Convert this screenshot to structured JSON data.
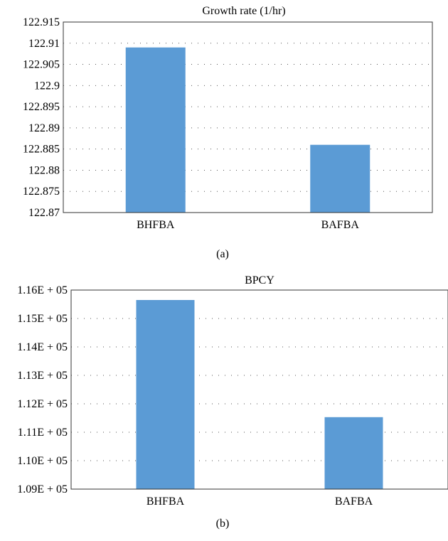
{
  "chart_data": [
    {
      "type": "bar",
      "title": "Growth rate (1/hr)",
      "categories": [
        "BHFBA",
        "BAFBA"
      ],
      "values": [
        122.909,
        122.886
      ],
      "ylim": [
        122.87,
        122.915
      ],
      "yticks": [
        "122.87",
        "122.875",
        "122.88",
        "122.885",
        "122.89",
        "122.895",
        "122.9",
        "122.905",
        "122.91",
        "122.915"
      ],
      "grid": true,
      "bar_color": "#5b9bd5",
      "caption": "(a)"
    },
    {
      "type": "bar",
      "title": "BPCY",
      "categories": [
        "BHFBA",
        "BAFBA"
      ],
      "values": [
        115650,
        111530
      ],
      "ylim": [
        109000,
        116000
      ],
      "yticks": [
        "1.09E + 05",
        "1.10E + 05",
        "1.11E + 05",
        "1.12E + 05",
        "1.13E + 05",
        "1.14E + 05",
        "1.15E + 05",
        "1.16E + 05"
      ],
      "grid": true,
      "bar_color": "#5b9bd5",
      "caption": "(b)"
    }
  ]
}
